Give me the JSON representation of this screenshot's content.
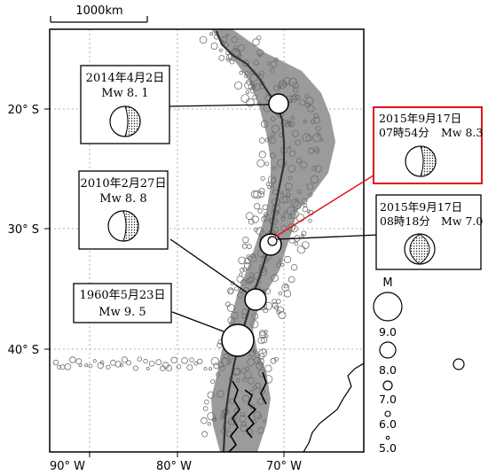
{
  "scale_bar": {
    "label": "1000km"
  },
  "axes": {
    "y_labels": [
      "20° S",
      "30° S",
      "40° S"
    ],
    "x_labels": [
      "90° W",
      "80° W",
      "70° W"
    ]
  },
  "events": [
    {
      "date": "2014年4月2日",
      "magnitude_text": "Mw 8. 1",
      "mw": 8.1,
      "highlighted": false
    },
    {
      "date": "2015年9月17日",
      "time": "07時54分",
      "magnitude_text": "Mw 8.3",
      "mw": 8.3,
      "highlighted": true
    },
    {
      "date": "2010年2月27日",
      "magnitude_text": "Mw 8. 8",
      "mw": 8.8,
      "highlighted": false
    },
    {
      "date": "2015年9月17日",
      "time": "08時18分",
      "magnitude_text": "Mw 7.0",
      "mw": 7.0,
      "highlighted": false
    },
    {
      "date": "1960年5月23日",
      "magnitude_text": "Mw 9. 5",
      "mw": 9.5,
      "highlighted": false
    }
  ],
  "magnitude_legend": {
    "title": "M",
    "levels": [
      "9.0",
      "8.0",
      "7.0",
      "6.0",
      "5.0"
    ]
  },
  "colors": {
    "seismicity": "#7a7a7a",
    "highlight_box": "#e0141e",
    "trench": "#333333"
  }
}
